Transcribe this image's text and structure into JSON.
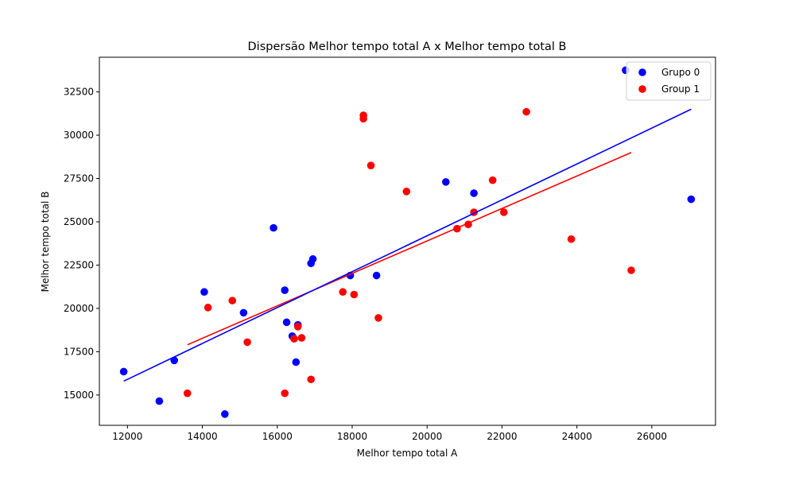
{
  "chart_data": {
    "type": "scatter",
    "title": "Dispersão Melhor tempo total A x Melhor tempo total B",
    "xlabel": "Melhor tempo total A",
    "ylabel": "Melhor tempo total B",
    "xlim": [
      11250,
      27700
    ],
    "ylim": [
      13250,
      34500
    ],
    "x_ticks": [
      12000,
      14000,
      16000,
      18000,
      20000,
      22000,
      24000,
      26000
    ],
    "y_ticks": [
      15000,
      17500,
      20000,
      22500,
      25000,
      27500,
      30000,
      32500
    ],
    "grid": false,
    "legend_position": "top-right",
    "series": [
      {
        "name": "Grupo 0",
        "color": "#0000ff",
        "points": [
          [
            11900,
            16350
          ],
          [
            12850,
            14650
          ],
          [
            13250,
            17000
          ],
          [
            14050,
            20950
          ],
          [
            14600,
            13900
          ],
          [
            15100,
            19750
          ],
          [
            15900,
            24650
          ],
          [
            16200,
            21050
          ],
          [
            16250,
            19200
          ],
          [
            16400,
            18400
          ],
          [
            16500,
            16900
          ],
          [
            16550,
            19050
          ],
          [
            16900,
            22600
          ],
          [
            16950,
            22850
          ],
          [
            17950,
            21900
          ],
          [
            18650,
            21900
          ],
          [
            20500,
            27300
          ],
          [
            21250,
            26650
          ],
          [
            25300,
            33750
          ],
          [
            27050,
            26300
          ]
        ],
        "fit_line": [
          [
            11900,
            15800
          ],
          [
            27050,
            31500
          ]
        ]
      },
      {
        "name": "Group 1",
        "color": "#ff0000",
        "points": [
          [
            13600,
            15100
          ],
          [
            14150,
            20050
          ],
          [
            14800,
            20450
          ],
          [
            15200,
            18050
          ],
          [
            16200,
            15100
          ],
          [
            16450,
            18250
          ],
          [
            16550,
            18950
          ],
          [
            16650,
            18300
          ],
          [
            16900,
            15900
          ],
          [
            17750,
            20950
          ],
          [
            18050,
            20800
          ],
          [
            18300,
            31150
          ],
          [
            18300,
            30950
          ],
          [
            18500,
            28250
          ],
          [
            18700,
            19450
          ],
          [
            19450,
            26750
          ],
          [
            20800,
            24600
          ],
          [
            21100,
            24850
          ],
          [
            21250,
            25550
          ],
          [
            21750,
            27400
          ],
          [
            22050,
            25550
          ],
          [
            22650,
            31350
          ],
          [
            23850,
            24000
          ],
          [
            25450,
            22200
          ]
        ],
        "fit_line": [
          [
            13600,
            17900
          ],
          [
            25450,
            29000
          ]
        ]
      }
    ]
  }
}
